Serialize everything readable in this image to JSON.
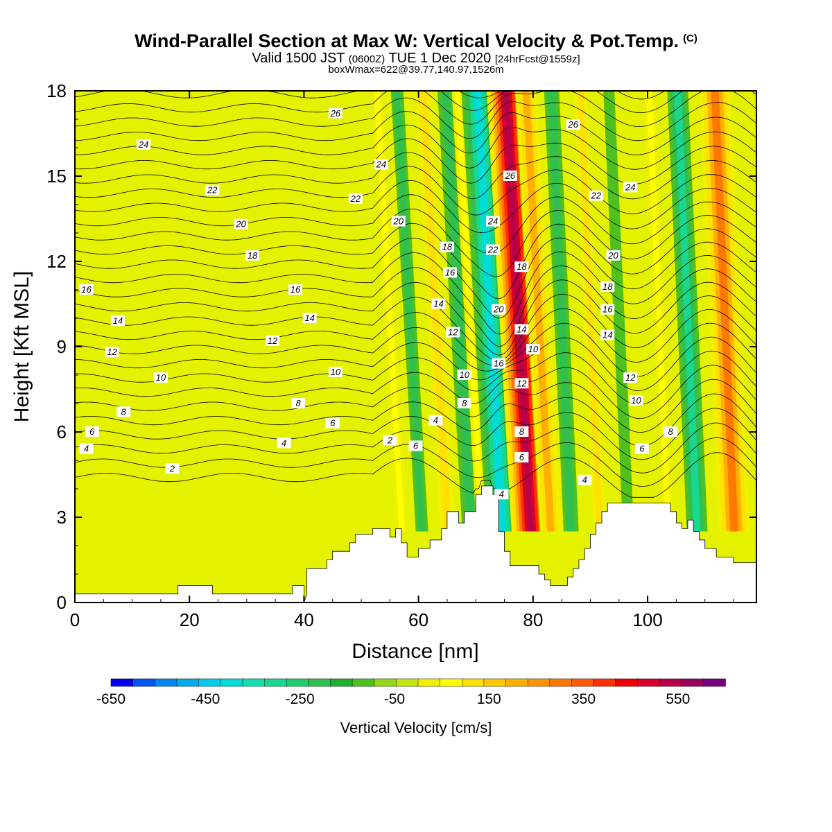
{
  "title": {
    "main": "Wind-Parallel Section at Max W: Vertical Velocity & Pot.Temp.",
    "mark": "(C)",
    "valid_prefix": "Valid 1500 JST",
    "valid_utc": "(0600Z)",
    "valid_date": "TUE 1 Dec 2020",
    "valid_fcst": "[24hrFcst@1559z]",
    "box": "boxWmax=622@39.77,140.97,1526m"
  },
  "chart_data": {
    "type": "heatmap",
    "description_fields": "filled vertical velocity with potential temperature contours",
    "xlabel": "Distance [nm]",
    "ylabel": "Height [Kft MSL]",
    "xlim": [
      0,
      119
    ],
    "ylim": [
      0,
      18
    ],
    "x_ticks": [
      0,
      20,
      40,
      60,
      80,
      100
    ],
    "y_ticks": [
      0,
      3,
      6,
      9,
      12,
      15,
      18
    ],
    "colorbar": {
      "title": "Vertical Velocity [cm/s]",
      "labels": [
        "-650",
        "-450",
        "-250",
        "-50",
        "150",
        "350",
        "550"
      ],
      "bounds": [
        -650,
        650
      ],
      "step": 50,
      "colors": [
        "#0000ee",
        "#0055f0",
        "#0088ee",
        "#00aaee",
        "#00ccee",
        "#00ddd8",
        "#10e0b0",
        "#18d890",
        "#20cc70",
        "#30c050",
        "#20b030",
        "#50c020",
        "#90d818",
        "#c0e810",
        "#f0f000",
        "#ffff00",
        "#ffe000",
        "#ffc800",
        "#ffb000",
        "#ff9500",
        "#ff7800",
        "#ff5a00",
        "#ff3000",
        "#f00000",
        "#d8002a",
        "#b80048",
        "#980060",
        "#7a0080"
      ]
    },
    "w_cores_cm_s": [
      {
        "x": 55,
        "w": 120
      },
      {
        "x": 58.5,
        "w": -150
      },
      {
        "x": 63,
        "w": 180
      },
      {
        "x": 67,
        "w": -200
      },
      {
        "x": 69,
        "w": 110
      },
      {
        "x": 72.5,
        "w": -380
      },
      {
        "x": 77.5,
        "w": 622
      },
      {
        "x": 81,
        "w": 260
      },
      {
        "x": 85,
        "w": -180
      },
      {
        "x": 90,
        "w": 150
      },
      {
        "x": 95,
        "w": -80
      },
      {
        "x": 102,
        "w": 120
      },
      {
        "x": 107,
        "w": -250
      },
      {
        "x": 113.5,
        "w": 380
      }
    ],
    "terrain_kft": [
      [
        40,
        0
      ],
      [
        40.5,
        0.3
      ],
      [
        40.5,
        1.2
      ],
      [
        44,
        1.2
      ],
      [
        44,
        1.5
      ],
      [
        45,
        1.5
      ],
      [
        45,
        1.8
      ],
      [
        48,
        1.8
      ],
      [
        48,
        2.1
      ],
      [
        49,
        2.1
      ],
      [
        49,
        2.4
      ],
      [
        52,
        2.4
      ],
      [
        52,
        2.6
      ],
      [
        55,
        2.6
      ],
      [
        55,
        2.3
      ],
      [
        56,
        2.3
      ],
      [
        56,
        2.6
      ],
      [
        57,
        2.6
      ],
      [
        57,
        2.1
      ],
      [
        58,
        2.1
      ],
      [
        58,
        1.6
      ],
      [
        60,
        1.6
      ],
      [
        60,
        1.9
      ],
      [
        62,
        1.9
      ],
      [
        62,
        2.2
      ],
      [
        64,
        2.2
      ],
      [
        64,
        2.6
      ],
      [
        65,
        2.6
      ],
      [
        65,
        3.2
      ],
      [
        67,
        3.2
      ],
      [
        67,
        2.8
      ],
      [
        68,
        2.8
      ],
      [
        68,
        3.2
      ],
      [
        70,
        3.2
      ],
      [
        70,
        3.8
      ],
      [
        71,
        3.8
      ],
      [
        71,
        4.1
      ],
      [
        73,
        4.1
      ],
      [
        73,
        3.8
      ],
      [
        74,
        3.8
      ],
      [
        74,
        2.5
      ],
      [
        75,
        2.5
      ],
      [
        75,
        1.8
      ],
      [
        76,
        1.8
      ],
      [
        76,
        1.3
      ],
      [
        81,
        1.3
      ],
      [
        81,
        1.0
      ],
      [
        82,
        1.0
      ],
      [
        82,
        0.8
      ],
      [
        83,
        0.8
      ],
      [
        83,
        0.6
      ],
      [
        86,
        0.6
      ],
      [
        86,
        0.9
      ],
      [
        87,
        0.9
      ],
      [
        87,
        1.2
      ],
      [
        88,
        1.2
      ],
      [
        88,
        1.5
      ],
      [
        89,
        1.5
      ],
      [
        89,
        1.9
      ],
      [
        90,
        1.9
      ],
      [
        90,
        2.4
      ],
      [
        91,
        2.4
      ],
      [
        91,
        2.8
      ],
      [
        92,
        2.8
      ],
      [
        92,
        3.2
      ],
      [
        93,
        3.2
      ],
      [
        93,
        3.5
      ],
      [
        104,
        3.5
      ],
      [
        104,
        3.2
      ],
      [
        105,
        3.2
      ],
      [
        105,
        2.8
      ],
      [
        106,
        2.8
      ],
      [
        106,
        2.6
      ],
      [
        107,
        2.6
      ],
      [
        107,
        2.9
      ],
      [
        108,
        2.9
      ],
      [
        108,
        2.5
      ],
      [
        109,
        2.5
      ],
      [
        109,
        2.2
      ],
      [
        110,
        2.2
      ],
      [
        110,
        1.9
      ],
      [
        112,
        1.9
      ],
      [
        112,
        1.6
      ],
      [
        115,
        1.6
      ],
      [
        115,
        1.4
      ],
      [
        119,
        1.4
      ]
    ],
    "terrain_left_kft": [
      [
        0,
        0.3
      ],
      [
        18,
        0.3
      ],
      [
        18,
        0.6
      ],
      [
        24,
        0.6
      ],
      [
        24,
        0.3
      ],
      [
        38,
        0.3
      ],
      [
        38,
        0.6
      ],
      [
        40,
        0.6
      ],
      [
        40,
        0
      ]
    ],
    "theta_labels": [
      {
        "text": "26",
        "x": 45.5,
        "y": 17.2
      },
      {
        "text": "24",
        "x": 12,
        "y": 16.1
      },
      {
        "text": "22",
        "x": 24,
        "y": 14.5
      },
      {
        "text": "20",
        "x": 29,
        "y": 13.3
      },
      {
        "text": "18",
        "x": 31,
        "y": 12.2
      },
      {
        "text": "16",
        "x": 2,
        "y": 11.0
      },
      {
        "text": "16",
        "x": 38.5,
        "y": 11.0
      },
      {
        "text": "14",
        "x": 7.5,
        "y": 9.9
      },
      {
        "text": "14",
        "x": 41,
        "y": 10.0
      },
      {
        "text": "12",
        "x": 6.5,
        "y": 8.8
      },
      {
        "text": "12",
        "x": 34.5,
        "y": 9.2
      },
      {
        "text": "10",
        "x": 15,
        "y": 7.9
      },
      {
        "text": "10",
        "x": 45.5,
        "y": 8.1
      },
      {
        "text": "8",
        "x": 8.5,
        "y": 6.7
      },
      {
        "text": "8",
        "x": 39,
        "y": 7.0
      },
      {
        "text": "6",
        "x": 3,
        "y": 6.0
      },
      {
        "text": "6",
        "x": 45,
        "y": 6.3
      },
      {
        "text": "4",
        "x": 2,
        "y": 5.4
      },
      {
        "text": "4",
        "x": 36.5,
        "y": 5.6
      },
      {
        "text": "2",
        "x": 17,
        "y": 4.7
      },
      {
        "text": "24",
        "x": 53.5,
        "y": 15.4
      },
      {
        "text": "22",
        "x": 49,
        "y": 14.2
      },
      {
        "text": "20",
        "x": 56.5,
        "y": 13.4
      },
      {
        "text": "18",
        "x": 65,
        "y": 12.5
      },
      {
        "text": "16",
        "x": 65.5,
        "y": 11.6
      },
      {
        "text": "14",
        "x": 63.5,
        "y": 10.5
      },
      {
        "text": "12",
        "x": 66,
        "y": 9.5
      },
      {
        "text": "10",
        "x": 68,
        "y": 8.0
      },
      {
        "text": "8",
        "x": 68,
        "y": 7.0
      },
      {
        "text": "6",
        "x": 59.5,
        "y": 5.5
      },
      {
        "text": "4",
        "x": 63,
        "y": 6.4
      },
      {
        "text": "2",
        "x": 55,
        "y": 5.7
      },
      {
        "text": "26",
        "x": 76,
        "y": 15.0
      },
      {
        "text": "24",
        "x": 73,
        "y": 13.4
      },
      {
        "text": "22",
        "x": 73,
        "y": 12.4
      },
      {
        "text": "20",
        "x": 74,
        "y": 10.3
      },
      {
        "text": "18",
        "x": 78,
        "y": 11.8
      },
      {
        "text": "16",
        "x": 74,
        "y": 8.4
      },
      {
        "text": "14",
        "x": 78,
        "y": 9.6
      },
      {
        "text": "12",
        "x": 78,
        "y": 7.7
      },
      {
        "text": "10",
        "x": 80,
        "y": 8.9
      },
      {
        "text": "8",
        "x": 78,
        "y": 6.0
      },
      {
        "text": "6",
        "x": 78,
        "y": 5.1
      },
      {
        "text": "4",
        "x": 74.5,
        "y": 3.8
      },
      {
        "text": "26",
        "x": 87,
        "y": 16.8
      },
      {
        "text": "24",
        "x": 97,
        "y": 14.6
      },
      {
        "text": "22",
        "x": 91,
        "y": 14.3
      },
      {
        "text": "20",
        "x": 94,
        "y": 12.2
      },
      {
        "text": "18",
        "x": 93,
        "y": 11.1
      },
      {
        "text": "16",
        "x": 93,
        "y": 10.3
      },
      {
        "text": "14",
        "x": 93,
        "y": 9.4
      },
      {
        "text": "12",
        "x": 97,
        "y": 7.9
      },
      {
        "text": "10",
        "x": 98,
        "y": 7.1
      },
      {
        "text": "8",
        "x": 104,
        "y": 6.0
      },
      {
        "text": "6",
        "x": 99,
        "y": 5.4
      },
      {
        "text": "4",
        "x": 89,
        "y": 4.3
      }
    ]
  }
}
